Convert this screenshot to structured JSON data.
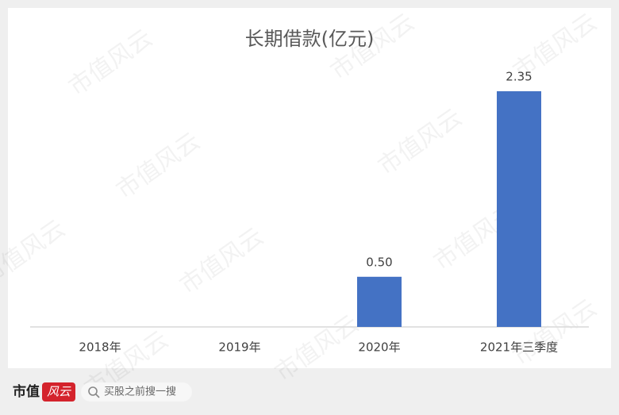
{
  "chart_data": {
    "type": "bar",
    "title": "长期借款(亿元)",
    "categories": [
      "2018年",
      "2019年",
      "2020年",
      "2021年三季度"
    ],
    "values": [
      null,
      null,
      0.5,
      2.35
    ],
    "value_labels": [
      null,
      null,
      "0.50",
      "2.35"
    ],
    "color": "#4472c4",
    "ylim": [
      0,
      2.5
    ]
  },
  "watermark": "市值风云",
  "footer": {
    "brand": "市值",
    "brand_mark": "风云",
    "search": "买股之前搜一搜"
  }
}
